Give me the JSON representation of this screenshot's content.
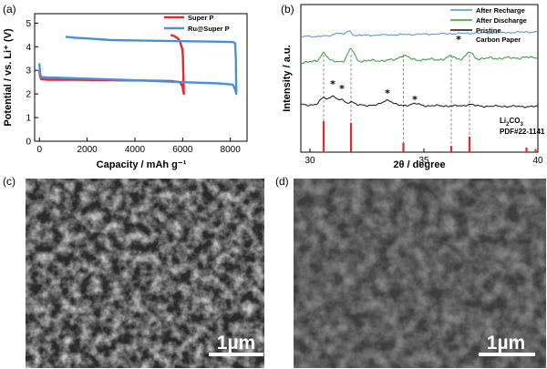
{
  "panels": {
    "a": "(a)",
    "b": "(b)",
    "c": "(c)",
    "d": "(d)"
  },
  "chart_data": [
    {
      "id": "a",
      "type": "line",
      "xlabel": "Capacity / mAh g⁻¹",
      "ylabel": "Potential / vs. Li⁺ (V)",
      "xlim": [
        -200,
        8700
      ],
      "ylim": [
        0,
        5.4
      ],
      "xticks": [
        "0",
        "2000",
        "4000",
        "6000",
        "8000"
      ],
      "yticks": [
        "0",
        "1",
        "2",
        "3",
        "4",
        "5"
      ],
      "legend": {
        "placement": "top-right",
        "entries": [
          "Super P",
          "Ru@Super P"
        ]
      },
      "series": [
        {
          "name": "Super P",
          "color": "#e8262b",
          "discharge": [
            [
              0,
              3.0
            ],
            [
              30,
              2.75
            ],
            [
              80,
              2.62
            ],
            [
              400,
              2.6
            ],
            [
              1500,
              2.6
            ],
            [
              3000,
              2.58
            ],
            [
              4500,
              2.57
            ],
            [
              5500,
              2.55
            ],
            [
              5900,
              2.5
            ],
            [
              6000,
              2.3
            ],
            [
              6050,
              2.0
            ]
          ],
          "charge": [
            [
              6050,
              2.0
            ],
            [
              6030,
              2.8
            ],
            [
              6010,
              3.6
            ],
            [
              5990,
              3.9
            ],
            [
              5950,
              4.0
            ],
            [
              5900,
              4.2
            ],
            [
              5800,
              4.35
            ],
            [
              5650,
              4.45
            ],
            [
              5500,
              4.5
            ]
          ]
        },
        {
          "name": "Ru@Super P",
          "color": "#4a90d9",
          "discharge": [
            [
              0,
              3.3
            ],
            [
              30,
              2.85
            ],
            [
              80,
              2.72
            ],
            [
              300,
              2.7
            ],
            [
              2000,
              2.65
            ],
            [
              4000,
              2.58
            ],
            [
              6000,
              2.5
            ],
            [
              7500,
              2.45
            ],
            [
              8100,
              2.4
            ],
            [
              8200,
              2.2
            ],
            [
              8250,
              2.0
            ]
          ],
          "charge": [
            [
              8250,
              2.0
            ],
            [
              8230,
              3.5
            ],
            [
              8200,
              4.15
            ],
            [
              8100,
              4.2
            ],
            [
              7000,
              4.22
            ],
            [
              5000,
              4.25
            ],
            [
              3000,
              4.28
            ],
            [
              2000,
              4.35
            ],
            [
              1500,
              4.38
            ],
            [
              1100,
              4.42
            ]
          ]
        }
      ]
    },
    {
      "id": "b",
      "type": "line",
      "xlabel": "2θ / degree",
      "ylabel": "Intensity / a.u.",
      "xlim": [
        29.6,
        40
      ],
      "xticks": [
        "30",
        "35",
        "40"
      ],
      "legend": {
        "placement": "top-right",
        "entries": [
          "After Recharge",
          "After Discharge",
          "Pristine",
          "Carbon Paper"
        ]
      },
      "series": [
        {
          "name": "After Recharge",
          "color": "#4a90d9",
          "offset": 0.78
        },
        {
          "name": "After Discharge",
          "color": "#2e9a2e",
          "offset": 0.55
        },
        {
          "name": "Pristine",
          "color": "#111111",
          "offset": 0.2
        }
      ],
      "reference": {
        "name": "Li₂CO₃ PDF#22-1141",
        "color": "#e8262b",
        "peaks": [
          [
            30.6,
            1.0
          ],
          [
            31.8,
            0.95
          ],
          [
            34.1,
            0.3
          ],
          [
            36.2,
            0.2
          ],
          [
            37.0,
            0.5
          ],
          [
            39.5,
            0.15
          ],
          [
            39.9,
            0.1
          ]
        ]
      },
      "carbon_paper_peaks": [
        31.0,
        31.4,
        33.4,
        34.6
      ],
      "dashed_markers": [
        30.6,
        31.8,
        34.1,
        36.2,
        37.0
      ]
    }
  ],
  "sem": [
    {
      "id": "c",
      "scale_text": "1µm"
    },
    {
      "id": "d",
      "scale_text": "1µm"
    }
  ]
}
